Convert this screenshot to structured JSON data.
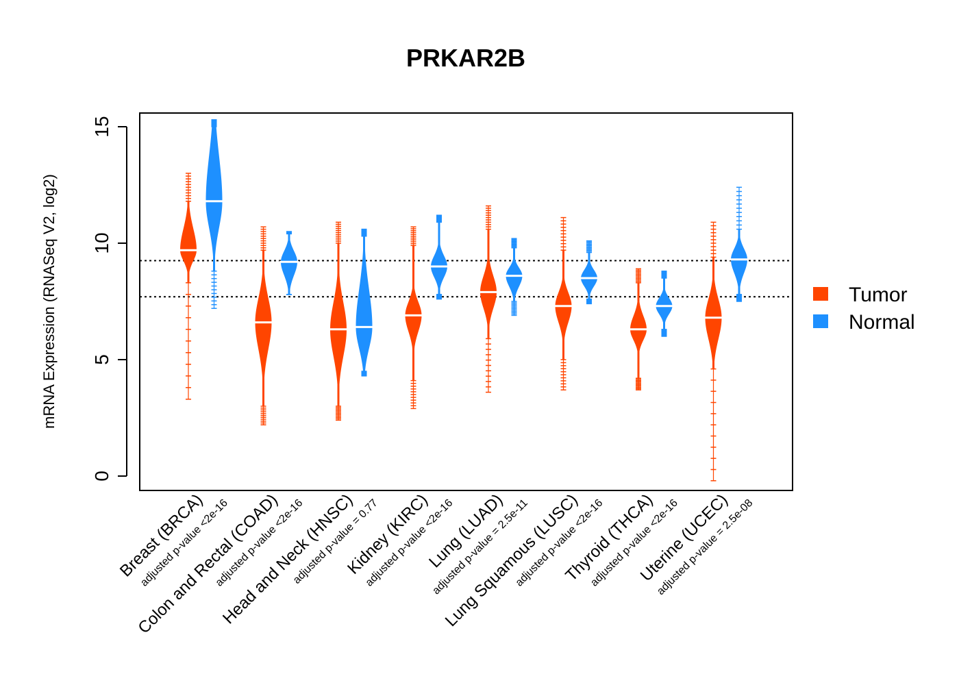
{
  "chart_data": {
    "type": "beanplot",
    "title": "PRKAR2B",
    "ylabel": "mRNA Expression (RNASeq V2, log2)",
    "xlabel": "",
    "ylim": [
      -0.6,
      15.6
    ],
    "yticks": [
      0,
      5,
      10,
      15
    ],
    "reference_lines": [
      9.25,
      7.7
    ],
    "colors": {
      "tumor": "#ff4500",
      "normal": "#1e90ff",
      "median": "#ffffff"
    },
    "legend": {
      "position": "right",
      "items": [
        {
          "name": "Tumor",
          "color": "#ff4500"
        },
        {
          "name": "Normal",
          "color": "#1e90ff"
        }
      ]
    },
    "categories": [
      {
        "label": "Breast (BRCA)",
        "pvalue": "adjusted p-value <2e-16",
        "tumor": {
          "min": 3.3,
          "max": 13.0,
          "median": 9.7,
          "q1": 9.3,
          "q3": 10.5,
          "core_low": 8.3,
          "core_high": 11.8
        },
        "normal": {
          "min": 7.2,
          "max": 15.3,
          "median": 11.8,
          "q1": 10.8,
          "q3": 13.5,
          "core_low": 8.8,
          "core_high": 15.0
        }
      },
      {
        "label": "Colon and Rectal (COAD)",
        "pvalue": "adjusted p-value <2e-16",
        "tumor": {
          "min": 2.2,
          "max": 10.7,
          "median": 6.6,
          "q1": 5.6,
          "q3": 7.5,
          "core_low": 3.0,
          "core_high": 9.7
        },
        "normal": {
          "min": 7.8,
          "max": 10.5,
          "median": 9.2,
          "q1": 8.7,
          "q3": 9.6,
          "core_low": 7.8,
          "core_high": 10.4
        }
      },
      {
        "label": "Head and Neck (HNSC)",
        "pvalue": "adjusted p-value = 0.77",
        "tumor": {
          "min": 2.4,
          "max": 10.9,
          "median": 6.3,
          "q1": 5.3,
          "q3": 7.3,
          "core_low": 3.0,
          "core_high": 10.0
        },
        "normal": {
          "min": 4.3,
          "max": 10.6,
          "median": 6.4,
          "q1": 5.6,
          "q3": 7.8,
          "core_low": 4.5,
          "core_high": 10.3
        }
      },
      {
        "label": "Kidney (KIRC)",
        "pvalue": "adjusted p-value <2e-16",
        "tumor": {
          "min": 2.9,
          "max": 10.7,
          "median": 6.9,
          "q1": 6.3,
          "q3": 7.4,
          "core_low": 4.1,
          "core_high": 9.9
        },
        "normal": {
          "min": 7.6,
          "max": 11.2,
          "median": 9.0,
          "q1": 8.6,
          "q3": 9.4,
          "core_low": 7.8,
          "core_high": 10.9
        }
      },
      {
        "label": "Lung (LUAD)",
        "pvalue": "adjusted p-value = 2.5e-11",
        "tumor": {
          "min": 3.6,
          "max": 11.6,
          "median": 7.9,
          "q1": 7.3,
          "q3": 8.5,
          "core_low": 5.9,
          "core_high": 10.6
        },
        "normal": {
          "min": 6.9,
          "max": 10.2,
          "median": 8.6,
          "q1": 8.2,
          "q3": 8.9,
          "core_low": 7.5,
          "core_high": 9.8
        }
      },
      {
        "label": "Lung Squamous (LUSC)",
        "pvalue": "adjusted p-value <2e-16",
        "tumor": {
          "min": 3.7,
          "max": 11.1,
          "median": 7.3,
          "q1": 6.7,
          "q3": 7.8,
          "core_low": 5.0,
          "core_high": 9.7
        },
        "normal": {
          "min": 7.4,
          "max": 10.1,
          "median": 8.5,
          "q1": 8.2,
          "q3": 8.8,
          "core_low": 7.6,
          "core_high": 9.6
        }
      },
      {
        "label": "Thyroid (THCA)",
        "pvalue": "adjusted p-value <2e-16",
        "tumor": {
          "min": 3.7,
          "max": 8.9,
          "median": 6.3,
          "q1": 5.9,
          "q3": 6.8,
          "core_low": 4.2,
          "core_high": 8.3
        },
        "normal": {
          "min": 6.0,
          "max": 8.8,
          "median": 7.3,
          "q1": 7.0,
          "q3": 7.6,
          "core_low": 6.3,
          "core_high": 8.5
        }
      },
      {
        "label": "Uterine (UCEC)",
        "pvalue": "adjusted p-value = 2.5e-08",
        "tumor": {
          "min": -0.2,
          "max": 10.9,
          "median": 6.8,
          "q1": 6.0,
          "q3": 7.5,
          "core_low": 4.6,
          "core_high": 9.4
        },
        "normal": {
          "min": 7.5,
          "max": 12.4,
          "median": 9.3,
          "q1": 8.8,
          "q3": 9.7,
          "core_low": 7.8,
          "core_high": 10.6
        }
      }
    ]
  }
}
